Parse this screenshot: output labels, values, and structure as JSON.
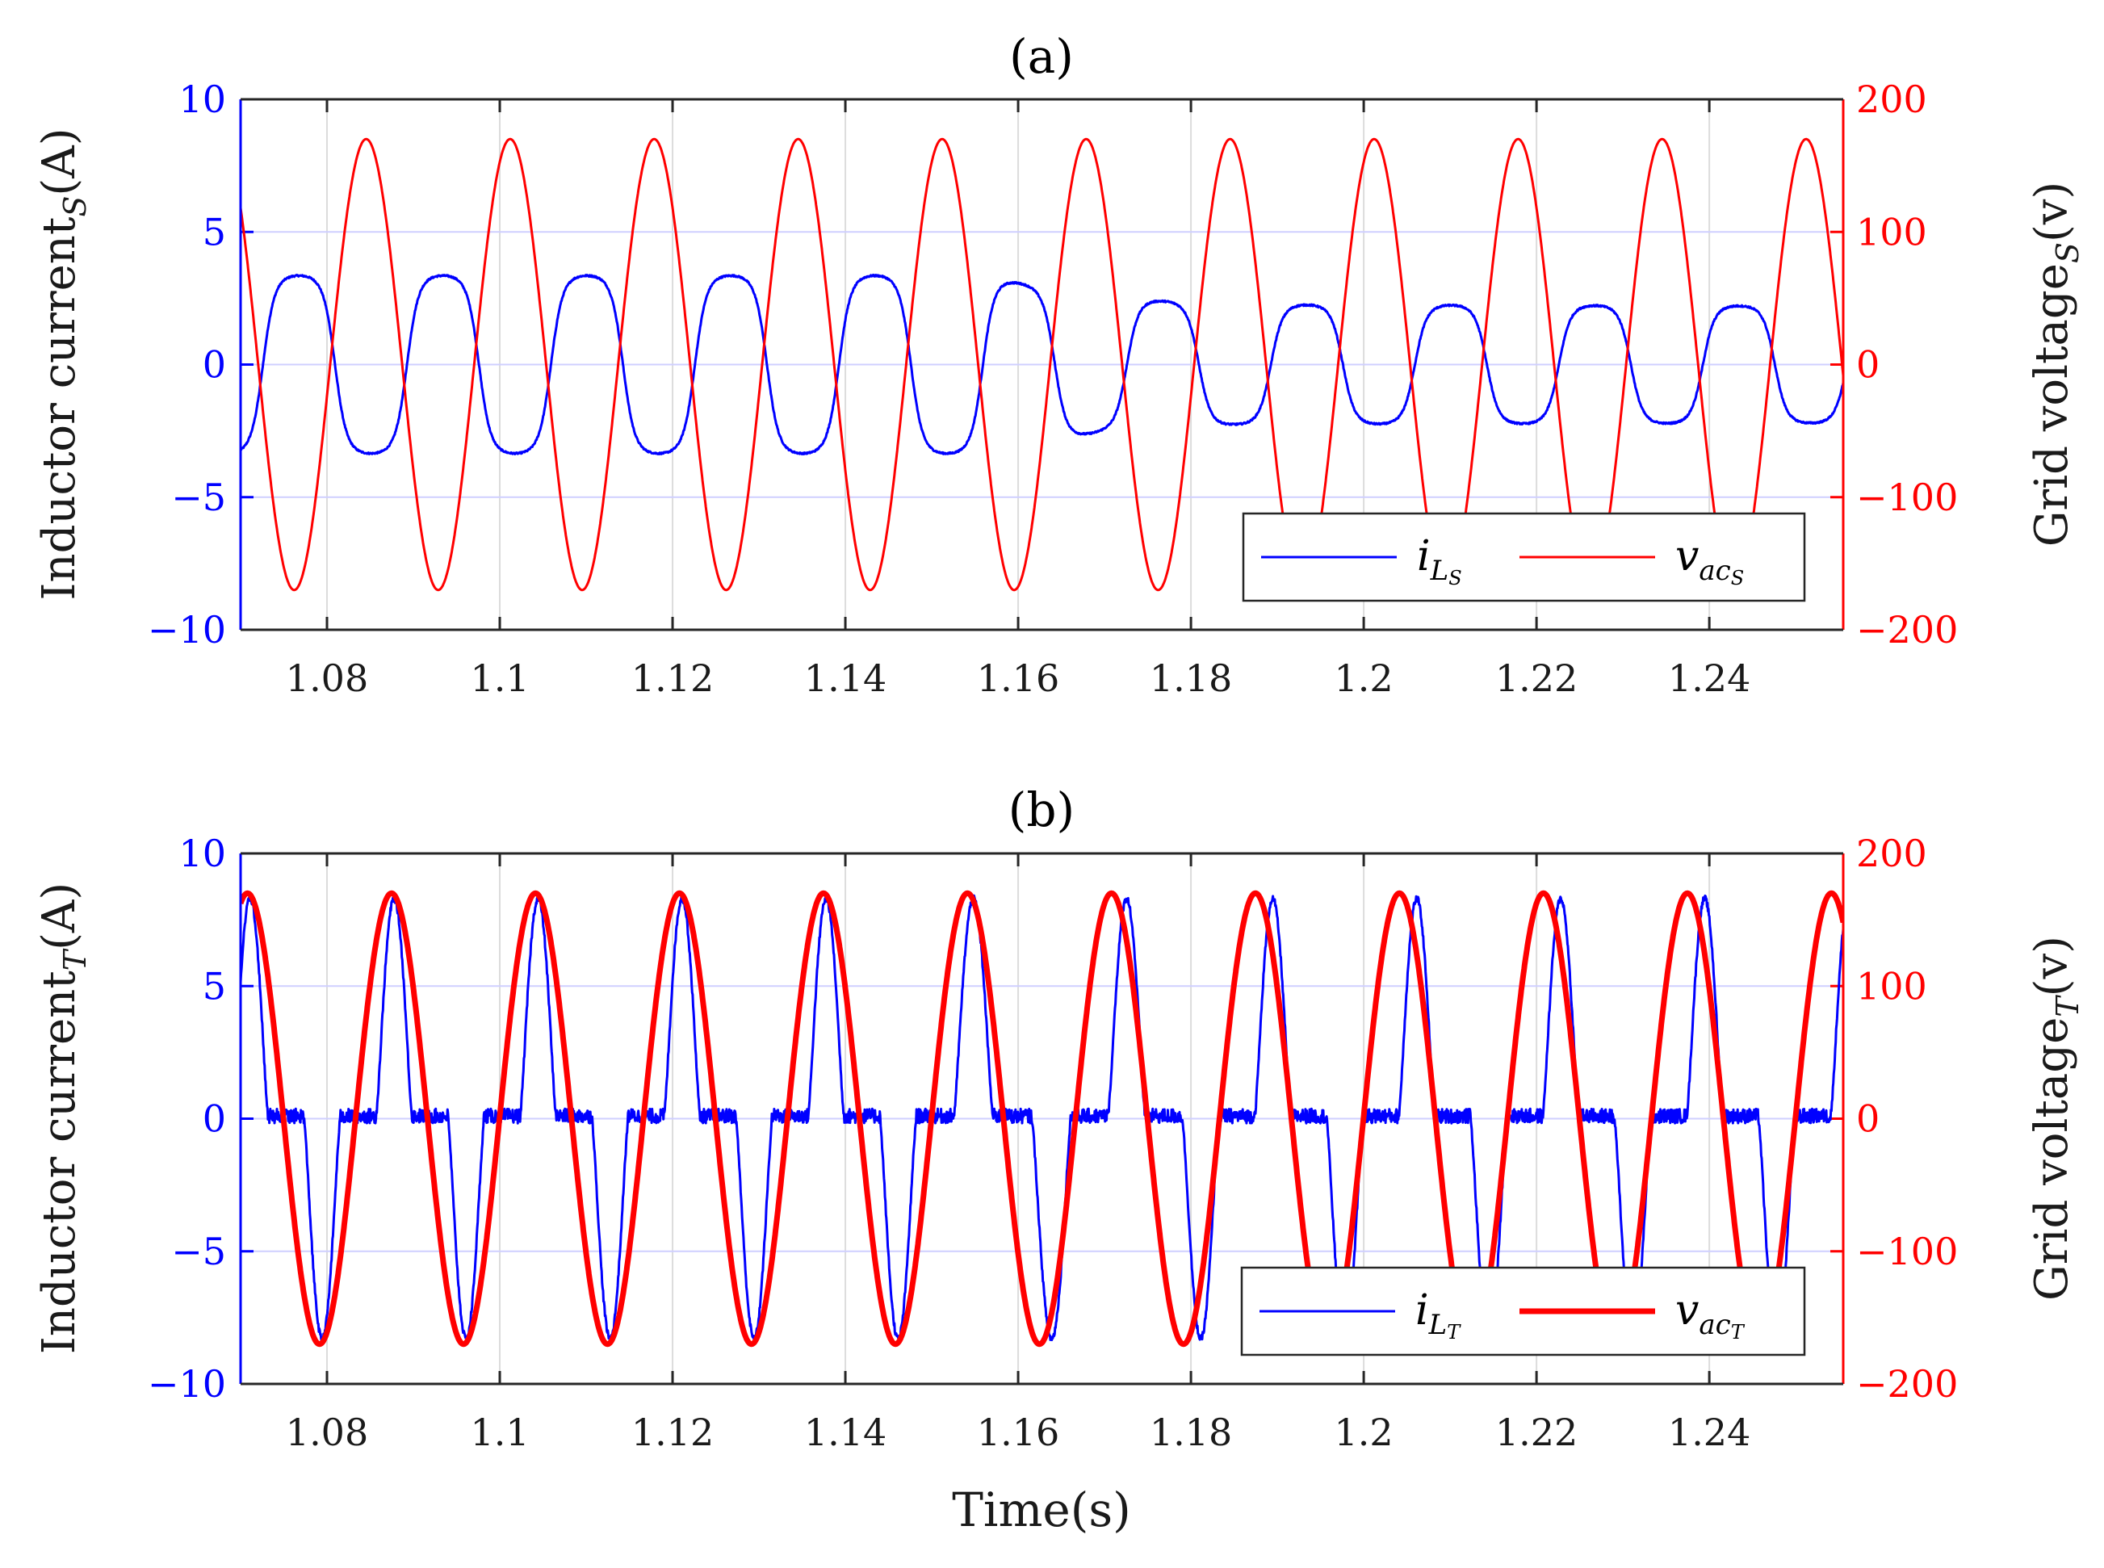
{
  "chart_data": [
    {
      "type": "line",
      "title": "(a)",
      "xlabel": "",
      "xlim": [
        1.07,
        1.2555
      ],
      "xticks": [
        1.08,
        1.1,
        1.12,
        1.14,
        1.16,
        1.18,
        1.2,
        1.22,
        1.24
      ],
      "xtick_labels": [
        "1.08",
        "1.1",
        "1.12",
        "1.14",
        "1.16",
        "1.18",
        "1.2",
        "1.22",
        "1.24"
      ],
      "ylabel_left": {
        "main": "Inductor current",
        "sub": "S",
        "suffix": "(A)"
      },
      "ylabel_right": {
        "main": "Grid voltage",
        "sub": "S",
        "suffix": "(v)"
      },
      "ylim_left": [
        -10,
        10
      ],
      "yticks_left": [
        -10,
        -5,
        0,
        5,
        10
      ],
      "ytick_labels_left": [
        "−10",
        "−5",
        "0",
        "5",
        "10"
      ],
      "ylim_right": [
        -200,
        200
      ],
      "yticks_right": [
        -200,
        -100,
        0,
        100,
        200
      ],
      "ytick_labels_right": [
        "−200",
        "−100",
        "0",
        "100",
        "200"
      ],
      "grid": true,
      "legend_position": "bottom-right",
      "series": [
        {
          "name": "i_LS",
          "legend_main": "i",
          "legend_sub": "L",
          "legend_subsub": "S",
          "axis": "left",
          "color": "#0000ff",
          "line": "thin",
          "model": "sine with soft clipping",
          "frequency_hz": 60,
          "phase_deg": -128,
          "amplitude_segments": [
            [
              1.07,
              3.35
            ],
            [
              1.155,
              3.35
            ],
            [
              1.17,
              2.5
            ],
            [
              1.185,
              2.25
            ],
            [
              1.2555,
              2.2
            ]
          ]
        },
        {
          "name": "v_acS",
          "legend_main": "v",
          "legend_sub": "ac",
          "legend_subsub": "S",
          "axis": "right",
          "color": "#ff0000",
          "line": "thin",
          "model": "sine",
          "frequency_hz": 60,
          "phase_deg": 64,
          "amplitude_v": 170
        }
      ]
    },
    {
      "type": "line",
      "title": "(b)",
      "xlabel": "Time(s)",
      "xlim": [
        1.07,
        1.2555
      ],
      "xticks": [
        1.08,
        1.1,
        1.12,
        1.14,
        1.16,
        1.18,
        1.2,
        1.22,
        1.24
      ],
      "xtick_labels": [
        "1.08",
        "1.1",
        "1.12",
        "1.14",
        "1.16",
        "1.18",
        "1.2",
        "1.22",
        "1.24"
      ],
      "ylabel_left": {
        "main": "Inductor current",
        "sub": "T",
        "suffix": "(A)"
      },
      "ylabel_right": {
        "main": "Grid voltage",
        "sub": "T",
        "suffix": "(v)"
      },
      "ylim_left": [
        -10,
        10
      ],
      "yticks_left": [
        -10,
        -5,
        0,
        5,
        10
      ],
      "ytick_labels_left": [
        "−10",
        "−5",
        "0",
        "5",
        "10"
      ],
      "ylim_right": [
        -200,
        200
      ],
      "yticks_right": [
        -200,
        -100,
        0,
        100,
        200
      ],
      "ytick_labels_right": [
        "−200",
        "−100",
        "0",
        "100",
        "200"
      ],
      "grid": true,
      "legend_position": "bottom-right",
      "series": [
        {
          "name": "i_LT",
          "legend_main": "i",
          "legend_sub": "L",
          "legend_subsub": "T",
          "axis": "left",
          "color": "#0000ff",
          "line": "thin",
          "model": "rectifier current pulses near voltage peaks",
          "frequency_hz": 60,
          "peak_a": 8.3,
          "baseline_a": 0.1,
          "pulse_delay_s": [
            [
              1.07,
              0.0003
            ],
            [
              1.15,
              0.0003
            ],
            [
              1.165,
              0.0015
            ],
            [
              1.18,
              0.002
            ],
            [
              1.2555,
              0.002
            ]
          ]
        },
        {
          "name": "v_acT",
          "legend_main": "v",
          "legend_sub": "ac",
          "legend_subsub": "T",
          "axis": "right",
          "color": "#ff0000",
          "line": "thick",
          "model": "sine",
          "frequency_hz": 60,
          "amplitude_v": 170,
          "peak_times_s": [
            1.0708,
            1.0875,
            1.1042,
            1.1208,
            1.1375,
            1.1542,
            1.1708,
            1.1875,
            1.2042,
            1.2208,
            1.2375,
            1.2542
          ]
        }
      ]
    }
  ]
}
